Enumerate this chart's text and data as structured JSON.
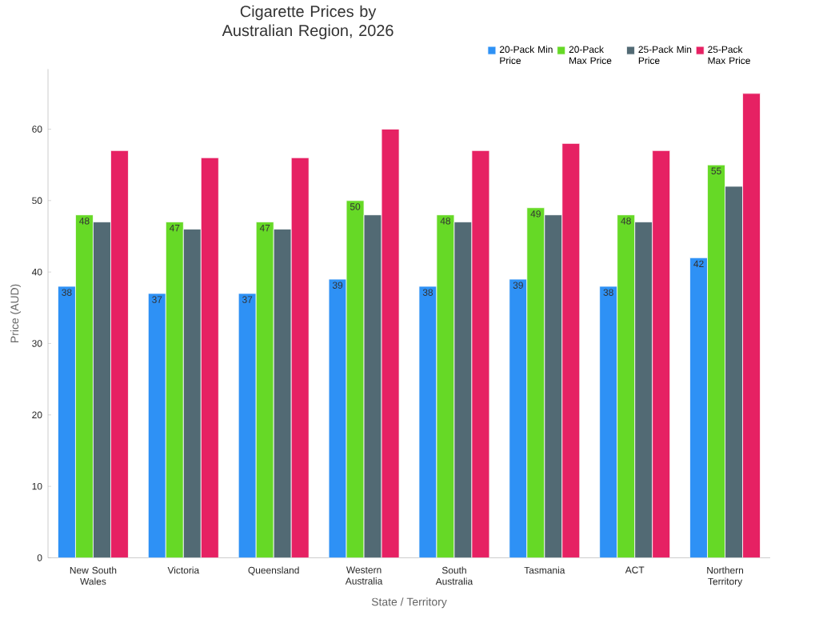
{
  "chart_data": {
    "type": "bar",
    "title": "Cigarette Prices by Australian Region, 2026",
    "xlabel": "State / Territory",
    "ylabel": "Price (AUD)",
    "categories": [
      "New South Wales",
      "Victoria",
      "Queensland",
      "Western Australia",
      "South Australia",
      "Tasmania",
      "ACT",
      "Northern Territory"
    ],
    "series": [
      {
        "name": "20-Pack Min Price",
        "color": "#2e91f5",
        "values": [
          38,
          37,
          37,
          39,
          38,
          39,
          38,
          42
        ],
        "value_labels": [
          "38",
          "37",
          "37",
          "39",
          "38",
          "39",
          "38",
          "42"
        ]
      },
      {
        "name": "20-Pack Max Price",
        "color": "#66d926",
        "values": [
          48,
          47,
          47,
          50,
          48,
          49,
          48,
          55
        ],
        "value_labels": [
          "48",
          "47",
          "47",
          "50",
          "48",
          "49",
          "48",
          "55"
        ]
      },
      {
        "name": "25-Pack Min Price",
        "color": "#526a74",
        "values": [
          47,
          46,
          46,
          48,
          47,
          48,
          47,
          52
        ]
      },
      {
        "name": "25-Pack Max Price",
        "color": "#e62163",
        "values": [
          57,
          56,
          56,
          60,
          57,
          58,
          57,
          65
        ]
      }
    ],
    "ylim": [
      0,
      68.4
    ],
    "yticks": [
      0,
      10,
      20,
      30,
      40,
      50,
      60
    ],
    "grid": false,
    "legend": "top right"
  }
}
